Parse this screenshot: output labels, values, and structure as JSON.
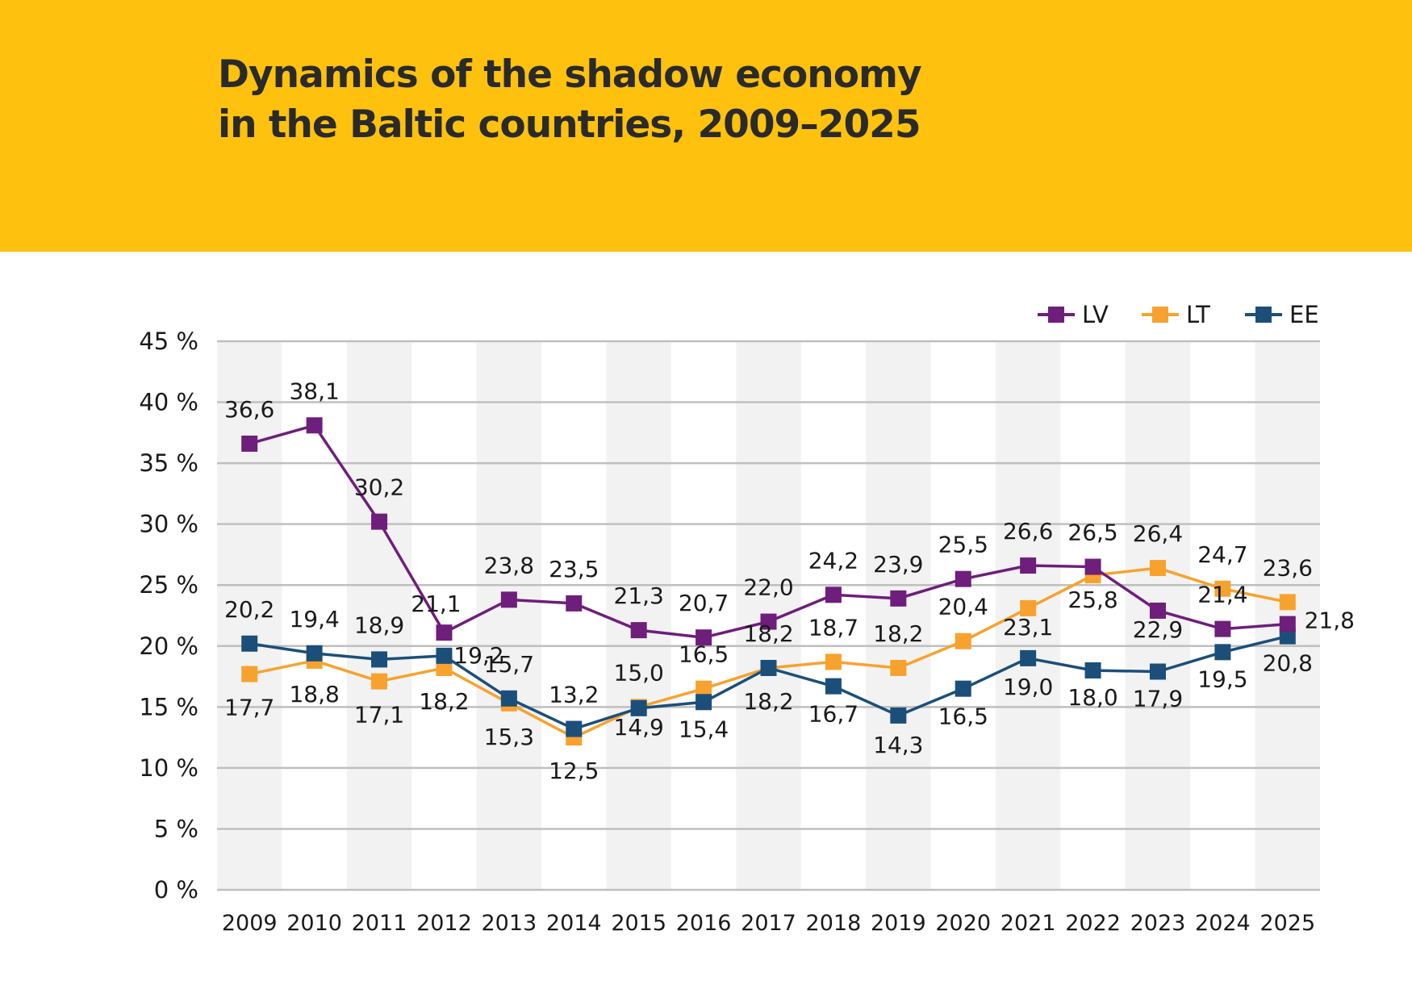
{
  "header": {
    "title_line1": "Dynamics of the shadow economy",
    "title_line2": "in the Baltic countries, 2009–2025",
    "background_color": "#FDC10E"
  },
  "chart_data": {
    "type": "line",
    "x": [
      "2009",
      "2010",
      "2011",
      "2012",
      "2013",
      "2014",
      "2015",
      "2016",
      "2017",
      "2018",
      "2019",
      "2020",
      "2021",
      "2022",
      "2023",
      "2024",
      "2025"
    ],
    "ylim": [
      0,
      45
    ],
    "yticks": [
      "0 %",
      "5 %",
      "10 %",
      "15 %",
      "20 %",
      "25 %",
      "30 %",
      "35 %",
      "40 %",
      "45 %"
    ],
    "grid": true,
    "legend_position": "top-right",
    "series": [
      {
        "name": "LV",
        "color": "#6E1E7B",
        "values": [
          36.6,
          38.1,
          30.2,
          21.1,
          23.8,
          23.5,
          21.3,
          20.7,
          22.0,
          24.2,
          23.9,
          25.5,
          26.6,
          26.5,
          22.9,
          21.4,
          21.8
        ],
        "labels": [
          "36,6",
          "38,1",
          "30,2",
          "21,1",
          "23,8",
          "23,5",
          "21,3",
          "20,7",
          "22,0",
          "24,2",
          "23,9",
          "25,5",
          "26,6",
          "26,5",
          "22,9",
          "21,4",
          "21,8"
        ]
      },
      {
        "name": "LT",
        "color": "#F7A22F",
        "values": [
          17.7,
          18.8,
          17.1,
          18.2,
          15.3,
          12.5,
          15.0,
          16.5,
          18.2,
          18.7,
          18.2,
          20.4,
          23.1,
          25.8,
          26.4,
          24.7,
          23.6
        ],
        "labels": [
          "17,7",
          "18,8",
          "17,1",
          "18,2",
          "15,3",
          "12,5",
          "15,0",
          "16,5",
          "18,2",
          "18,7",
          "18,2",
          "20,4",
          "23,1",
          "25,8",
          "26,4",
          "24,7",
          "23,6"
        ]
      },
      {
        "name": "EE",
        "color": "#1B4F7A",
        "values": [
          20.2,
          19.4,
          18.9,
          19.2,
          15.7,
          13.2,
          14.9,
          15.4,
          18.2,
          16.7,
          14.3,
          16.5,
          19.0,
          18.0,
          17.9,
          19.5,
          20.8
        ],
        "labels": [
          "20,2",
          "19,4",
          "18,9",
          "19,2",
          "15,7",
          "13,2",
          "14,9",
          "15,4",
          "18,2",
          "16,7",
          "14,3",
          "16,5",
          "19,0",
          "18,0",
          "17,9",
          "19,5",
          "20,8"
        ]
      }
    ]
  }
}
